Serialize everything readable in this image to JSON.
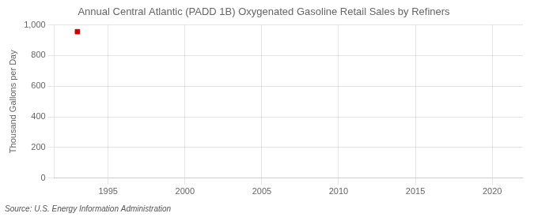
{
  "chart_data": {
    "type": "scatter",
    "title": "Annual Central Atlantic (PADD 1B) Oxygenated Gasoline Retail Sales by Refiners",
    "ylabel": "Thousand Gallons per Day",
    "source": "Source: U.S. Energy Information Administration",
    "x": [
      1993
    ],
    "values": [
      956
    ],
    "color": "#cc0000",
    "marker": "square",
    "xlim": [
      1991.5,
      2022
    ],
    "ylim": [
      0,
      1000
    ],
    "xticks": [
      1995,
      2000,
      2005,
      2010,
      2015,
      2020
    ],
    "yticks": [
      0,
      200,
      400,
      600,
      800,
      {
        "value": 1000,
        "label": "1,000"
      }
    ],
    "grid": true
  }
}
